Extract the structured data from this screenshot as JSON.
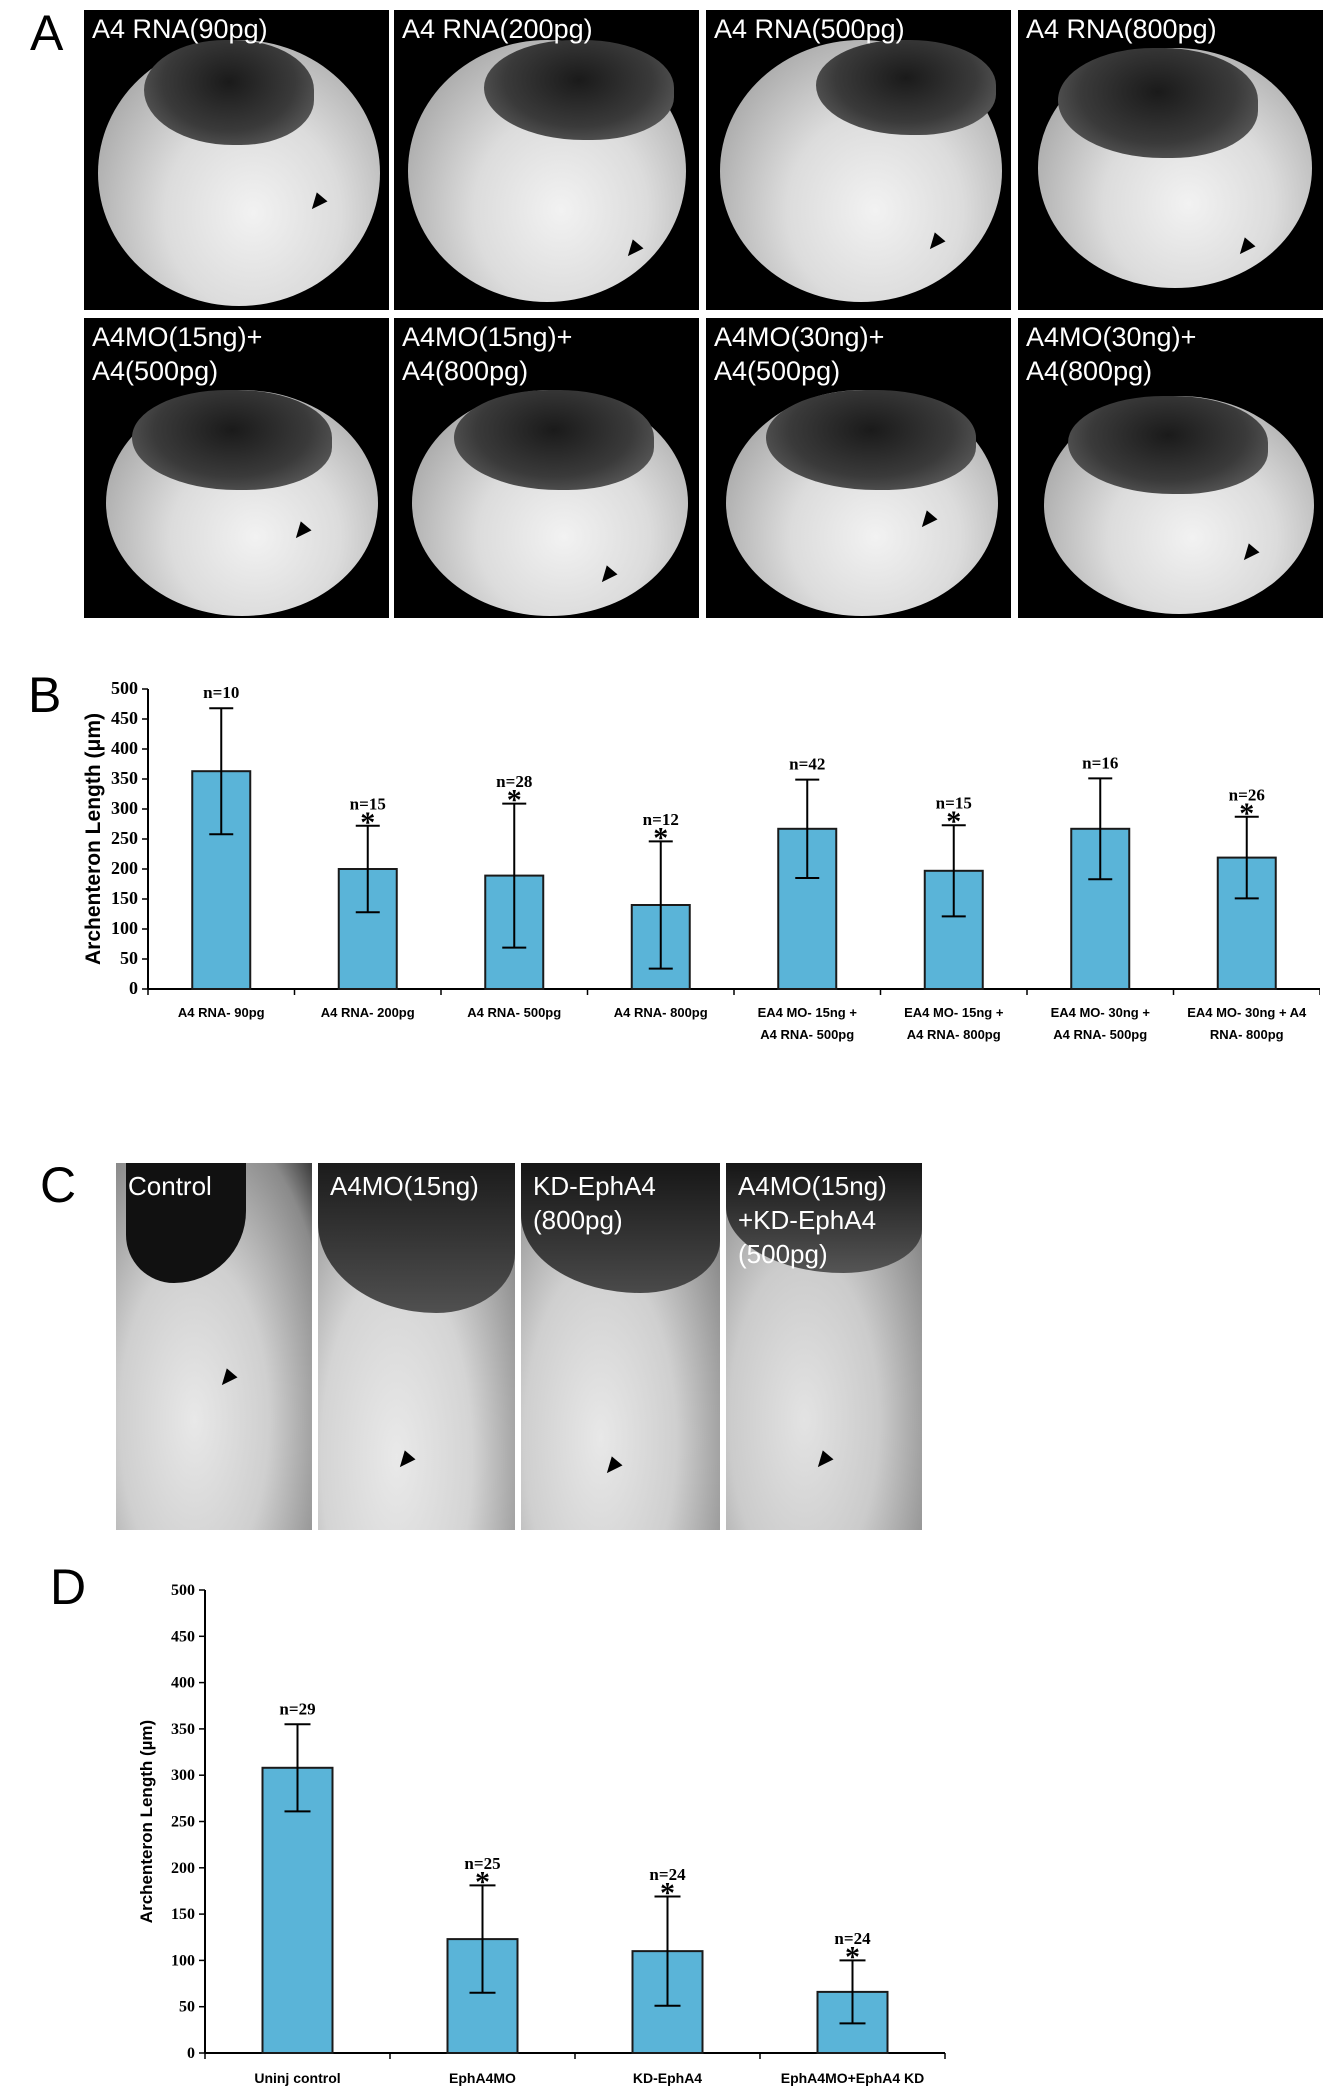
{
  "panel_a": {
    "letter": "A",
    "images": [
      {
        "label": "A4 RNA(90pg)"
      },
      {
        "label": "A4 RNA(200pg)"
      },
      {
        "label": "A4 RNA(500pg)"
      },
      {
        "label": "A4 RNA(800pg)"
      },
      {
        "label": "A4MO(15ng)+\nA4(500pg)"
      },
      {
        "label": "A4MO(15ng)+\nA4(800pg)"
      },
      {
        "label": "A4MO(30ng)+\nA4(500pg)"
      },
      {
        "label": "A4MO(30ng)+\nA4(800pg)"
      }
    ]
  },
  "panel_b": {
    "letter": "B"
  },
  "panel_c": {
    "letter": "C",
    "images": [
      {
        "label": "Control"
      },
      {
        "label": "A4MO(15ng)"
      },
      {
        "label": "KD-EphA4\n(800pg)"
      },
      {
        "label": "A4MO(15ng)\n+KD-EphA4\n(500pg)"
      }
    ]
  },
  "panel_d": {
    "letter": "D"
  },
  "colors": {
    "bar": "#5ab4d8",
    "bar_stroke": "#1a1a1a"
  },
  "chart_data": [
    {
      "type": "bar",
      "ylabel": "Archenteron Length (μm)",
      "ylim": [
        0,
        500
      ],
      "yticks": [
        0,
        50,
        100,
        150,
        200,
        250,
        300,
        350,
        400,
        450,
        500
      ],
      "categories": [
        "A4 RNA- 90pg",
        "A4 RNA- 200pg",
        "A4 RNA- 500pg",
        "A4 RNA- 800pg",
        "EA4 MO- 15ng +\nA4 RNA- 500pg",
        "EA4 MO- 15ng +\nA4 RNA- 800pg",
        "EA4 MO- 30ng +\nA4 RNA- 500pg",
        "EA4 MO- 30ng + A4\nRNA- 800pg"
      ],
      "values": [
        363,
        200,
        189,
        140,
        267,
        197,
        267,
        219
      ],
      "errors": [
        105,
        72,
        120,
        106,
        82,
        76,
        84,
        68
      ],
      "n_labels": [
        "n=10",
        "n=15",
        "n=28",
        "n=12",
        "n=42",
        "n=15",
        "n=16",
        "n=26"
      ],
      "significant": [
        false,
        true,
        true,
        true,
        false,
        true,
        false,
        true
      ],
      "sig_marker": "*"
    },
    {
      "type": "bar",
      "ylabel": "Archenteron Length (µm)",
      "ylim": [
        0,
        500
      ],
      "yticks": [
        0,
        50,
        100,
        150,
        200,
        250,
        300,
        350,
        400,
        450,
        500
      ],
      "categories": [
        "Uninj control",
        "EphA4MO",
        "KD-EphA4",
        "EphA4MO+EphA4 KD"
      ],
      "values": [
        308,
        123,
        110,
        66
      ],
      "errors": [
        47,
        58,
        59,
        34
      ],
      "n_labels": [
        "n=29",
        "n=25",
        "n=24",
        "n=24"
      ],
      "significant": [
        false,
        true,
        true,
        true
      ],
      "sig_marker": "*"
    }
  ]
}
